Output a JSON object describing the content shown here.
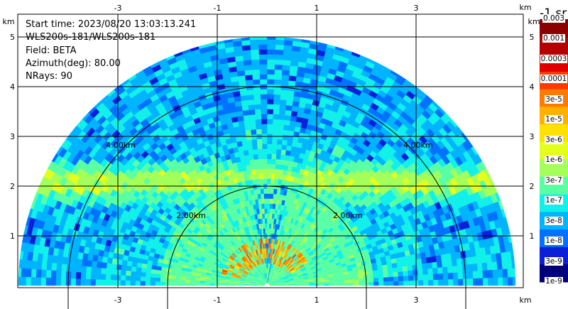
{
  "chart_data": {
    "type": "heatmap",
    "subtype": "ppi-radar-scan",
    "info_lines": [
      "Start time: 2023/08/20 13:03:13.241",
      "WLS200s-181/WLS200s-181",
      "Field: BETA",
      "Azimuth(deg): 80.00",
      "NRays: 90"
    ],
    "x_unit": "km",
    "y_unit": "km",
    "x_ticks": [
      -3,
      -1,
      1,
      3
    ],
    "y_ticks": [
      1,
      2,
      3,
      4,
      5
    ],
    "xlim": [
      -5.8,
      4.2
    ],
    "ylim": [
      0,
      5.9
    ],
    "grid": true,
    "range_rings_km": [
      2.0,
      4.0
    ],
    "range_ring_labels": [
      "2.00km",
      "4.00km"
    ],
    "max_range_km": 5.0,
    "n_rays": 90,
    "colorbar_title": "-1 sr",
    "colorbar_labels": [
      "0.003",
      "0.001",
      "0.0003",
      "0.0001",
      "3e-5",
      "1e-5",
      "3e-6",
      "1e-6",
      "3e-7",
      "1e-7",
      "3e-8",
      "1e-8",
      "3e-9",
      "1e-9"
    ],
    "colorbar_colors": [
      "#8b0000",
      "#b30000",
      "#e00000",
      "#ff3a00",
      "#ff7a00",
      "#ffb000",
      "#ffe100",
      "#e4ff1e",
      "#a4ff5a",
      "#5affa4",
      "#12f0ea",
      "#00b4ff",
      "#0072ff",
      "#0a20d8",
      "#00007a"
    ],
    "features": [
      {
        "name": "aerosol-layer",
        "range_km": [
          2.0,
          2.2
        ],
        "color_level": "3e-7"
      },
      {
        "name": "strong-echo",
        "range_km": [
          0.5,
          0.8
        ],
        "color_level": "1e-5"
      }
    ]
  }
}
